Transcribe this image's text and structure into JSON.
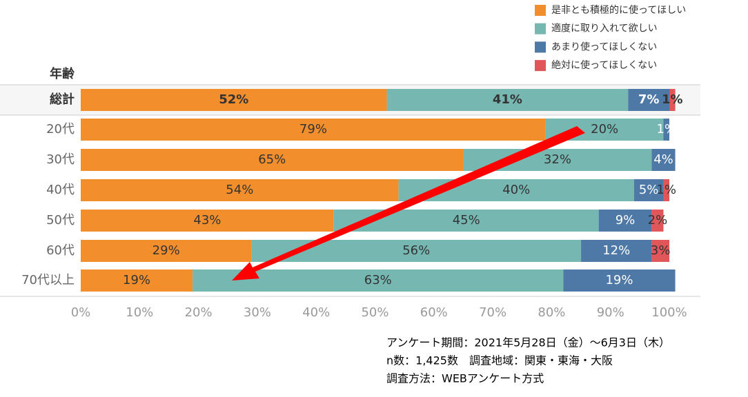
{
  "chart_data": {
    "type": "stacked-bar",
    "row_header": "年齢",
    "categories": [
      "総計",
      "20代",
      "30代",
      "40代",
      "50代",
      "60代",
      "70代以上"
    ],
    "series": [
      {
        "name": "是非とも積極的に使ってほしい",
        "color": "#f28e2b",
        "values": [
          52,
          79,
          65,
          54,
          43,
          29,
          19
        ],
        "value_labels": [
          "52%",
          "79%",
          "65%",
          "54%",
          "43%",
          "29%",
          "19%"
        ]
      },
      {
        "name": "適度に取り入れて欲しい",
        "color": "#76b7b2",
        "values": [
          41,
          20,
          32,
          40,
          45,
          56,
          63
        ],
        "value_labels": [
          "41%",
          "20%",
          "32%",
          "40%",
          "45%",
          "56%",
          "63%"
        ]
      },
      {
        "name": "あまり使ってほしくない",
        "color": "#4e79a7",
        "values": [
          7,
          1,
          4,
          5,
          9,
          12,
          19
        ],
        "value_labels": [
          "7%",
          "1%",
          "4%",
          "5%",
          "9%",
          "12%",
          "19%"
        ]
      },
      {
        "name": "絶対に使ってほしくない",
        "color": "#e15759",
        "values": [
          1,
          null,
          null,
          1,
          2,
          3,
          null
        ],
        "value_labels": [
          "1%",
          null,
          null,
          "1%",
          "2%",
          "3%",
          null
        ]
      }
    ],
    "xlim": [
      0,
      100
    ],
    "xticks": [
      {
        "value": 0,
        "label": "0%"
      },
      {
        "value": 10,
        "label": "10%"
      },
      {
        "value": 20,
        "label": "20%"
      },
      {
        "value": 30,
        "label": "30%"
      },
      {
        "value": 40,
        "label": "40%"
      },
      {
        "value": 50,
        "label": "50%"
      },
      {
        "value": 60,
        "label": "60%"
      },
      {
        "value": 70,
        "label": "70%"
      },
      {
        "value": 80,
        "label": "80%"
      },
      {
        "value": 90,
        "label": "90%"
      },
      {
        "value": 100,
        "label": "100%"
      }
    ],
    "notes": [
      "アンケート期間：2021年5月28日（金）～6月3日（木）",
      "n数：1,425数　調査地域：関東・東海・大阪",
      "調査方法：WEBアンケート方式"
    ]
  }
}
